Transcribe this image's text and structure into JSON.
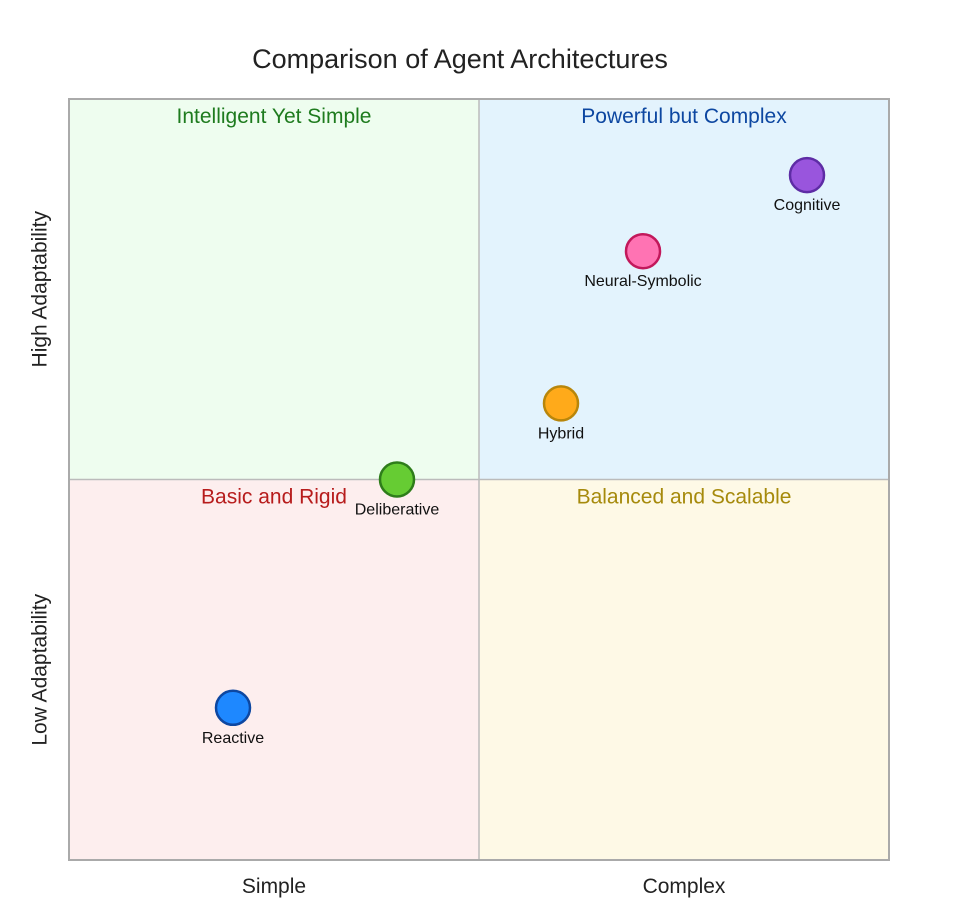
{
  "chart_data": {
    "type": "scatter",
    "subtype": "quadrant",
    "title": "Comparison of Agent Architectures",
    "x_axis": {
      "range": [
        0,
        1
      ],
      "tick_labels": [
        "Simple",
        "Complex"
      ]
    },
    "y_axis": {
      "range": [
        0,
        1
      ],
      "tick_labels": [
        "Low Adaptability",
        "High Adaptability"
      ]
    },
    "quadrants": [
      {
        "label": "Intelligent Yet Simple",
        "position": "top-left",
        "fill": "#eefdef",
        "text_color": "#1e7b1e"
      },
      {
        "label": "Powerful but Complex",
        "position": "top-right",
        "fill": "#e3f3fd",
        "text_color": "#0d47a1"
      },
      {
        "label": "Basic and Rigid",
        "position": "bottom-left",
        "fill": "#fdeeee",
        "text_color": "#b71c1c"
      },
      {
        "label": "Balanced and Scalable",
        "position": "bottom-right",
        "fill": "#fef9e6",
        "text_color": "#a68a0c"
      }
    ],
    "points": [
      {
        "label": "Reactive",
        "x": 0.2,
        "y": 0.2,
        "fill": "#1e88ff",
        "stroke": "#0d47a1"
      },
      {
        "label": "Deliberative",
        "x": 0.4,
        "y": 0.5,
        "fill": "#66cc33",
        "stroke": "#2e7d1a"
      },
      {
        "label": "Hybrid",
        "x": 0.6,
        "y": 0.6,
        "fill": "#ffaa1a",
        "stroke": "#b8860b"
      },
      {
        "label": "Neural-Symbolic",
        "x": 0.7,
        "y": 0.8,
        "fill": "#ff73b3",
        "stroke": "#c2185b"
      },
      {
        "label": "Cognitive",
        "x": 0.9,
        "y": 0.9,
        "fill": "#9955dd",
        "stroke": "#5e2ca5"
      }
    ],
    "grid": false,
    "divider_color": "#bbbbbb",
    "frame_color": "#aaaaaa"
  }
}
